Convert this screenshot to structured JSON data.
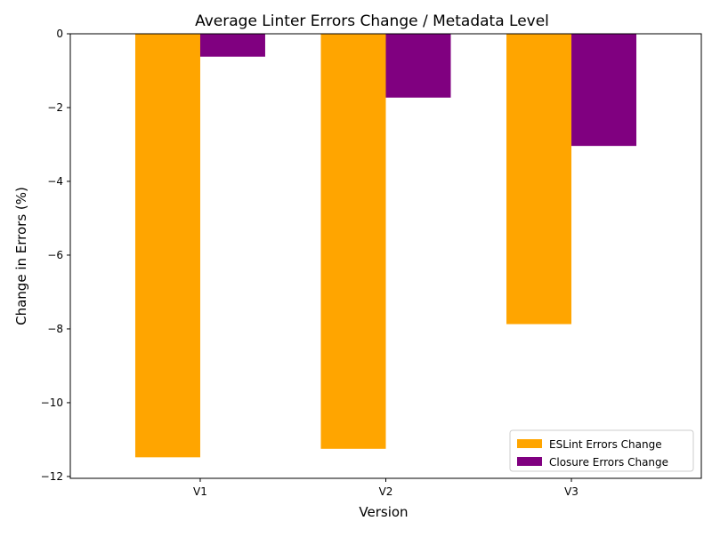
{
  "chart_data": {
    "type": "bar",
    "title": "Average Linter Errors Change / Metadata Level",
    "xlabel": "Version",
    "ylabel": "Change in Errors (%)",
    "categories": [
      "V1",
      "V2",
      "V3"
    ],
    "series": [
      {
        "name": "ESLint Errors Change",
        "color": "#ffa500",
        "values": [
          -11.48,
          -11.25,
          -7.87
        ]
      },
      {
        "name": "Closure Errors Change",
        "color": "#800080",
        "values": [
          -0.62,
          -1.73,
          -3.04
        ]
      }
    ],
    "ylim": [
      -12.05,
      0
    ],
    "yticks": [
      0,
      -2,
      -4,
      -6,
      -8,
      -10,
      -12
    ],
    "ytick_labels": [
      "0",
      "−2",
      "−4",
      "−6",
      "−8",
      "−10",
      "−12"
    ],
    "grid": false,
    "legend_position": "lower-right"
  }
}
